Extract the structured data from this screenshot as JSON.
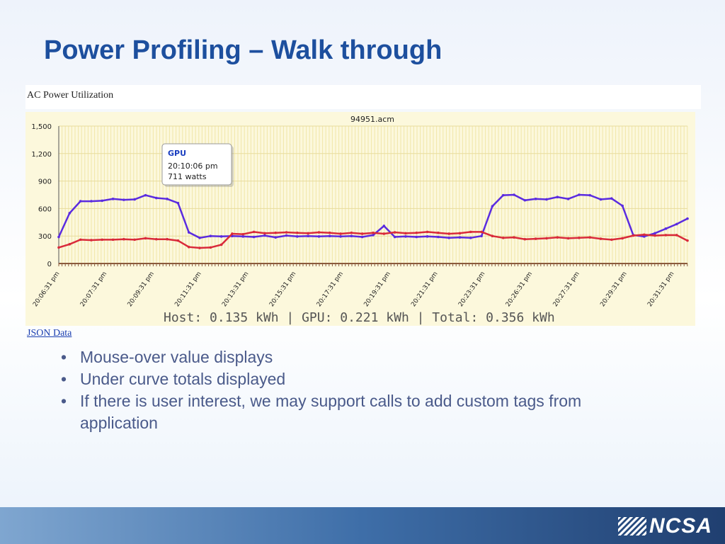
{
  "slide": {
    "title": "Power Profiling – Walk through",
    "bullets": [
      "Mouse-over value displays",
      "Under curve totals displayed",
      "If there is user interest, we may support calls to add custom tags from application"
    ],
    "logo_text": "NCSA"
  },
  "panel": {
    "header": "AC Power Utilization",
    "link": "JSON Data"
  },
  "chart_data": {
    "type": "line",
    "title": "94951.acm",
    "xlabel": "",
    "ylabel": "",
    "ylim": [
      0,
      1500
    ],
    "yticks": [
      0,
      300,
      600,
      900,
      1200,
      1500
    ],
    "ytick_labels": [
      "0",
      "300",
      "600",
      "900",
      "1,200",
      "1,500"
    ],
    "xtick_labels": [
      "20:06:31 pm",
      "20:07:31 pm",
      "20:09:31 pm",
      "20:11:31 pm",
      "20:13:31 pm",
      "20:15:31 pm",
      "20:17:31 pm",
      "20:19:31 pm",
      "20:21:31 pm",
      "20:23:31 pm",
      "20:26:31 pm",
      "20:27:31 pm",
      "20:29:31 pm",
      "20:31:31 pm"
    ],
    "grid": true,
    "summary": "Host: 0.135 kWh | GPU: 0.221 kWh | Total: 0.356 kWh",
    "series": [
      {
        "name": "GPU",
        "color": "#5a2be0",
        "values": [
          290,
          550,
          680,
          680,
          685,
          705,
          695,
          700,
          745,
          715,
          705,
          660,
          340,
          280,
          300,
          295,
          300,
          295,
          290,
          305,
          285,
          305,
          295,
          300,
          295,
          300,
          295,
          300,
          290,
          310,
          410,
          290,
          295,
          290,
          295,
          290,
          280,
          285,
          280,
          300,
          625,
          745,
          750,
          690,
          705,
          700,
          725,
          705,
          750,
          745,
          700,
          710,
          630,
          310,
          295,
          330,
          380,
          430,
          490
        ]
      },
      {
        "name": "Host",
        "color": "#d92a3a",
        "values": [
          175,
          210,
          260,
          255,
          260,
          260,
          265,
          260,
          275,
          265,
          265,
          250,
          180,
          170,
          175,
          205,
          325,
          320,
          345,
          330,
          335,
          340,
          335,
          330,
          340,
          335,
          325,
          335,
          325,
          335,
          325,
          340,
          330,
          335,
          345,
          335,
          325,
          330,
          345,
          345,
          300,
          280,
          285,
          265,
          270,
          275,
          285,
          275,
          280,
          285,
          270,
          260,
          275,
          305,
          315,
          305,
          310,
          310,
          250
        ]
      }
    ],
    "tooltip": {
      "series": "GPU",
      "time": "20:10:06 pm",
      "value_text": "711 watts"
    }
  }
}
